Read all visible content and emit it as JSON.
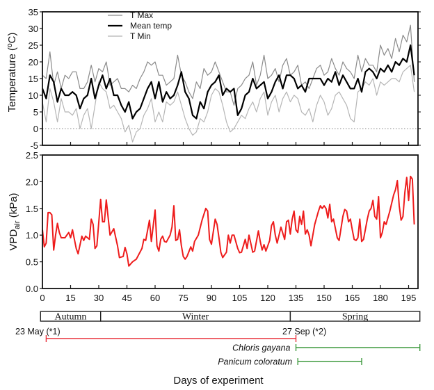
{
  "chart_data": [
    {
      "type": "line",
      "title": "",
      "xlabel": "",
      "ylabel": "Temperature (ºC)",
      "xlim": [
        0,
        200
      ],
      "ylim": [
        -5,
        35
      ],
      "yticks": [
        -5,
        0,
        5,
        10,
        15,
        20,
        25,
        30,
        35
      ],
      "reference_line": {
        "y": 0,
        "style": "dotted"
      },
      "legend": {
        "placement": "top-left",
        "entries": [
          "T Max",
          "Mean temp",
          "T Min"
        ]
      },
      "series": [
        {
          "name": "T Max",
          "color": "#8a8a8a",
          "x": [
            0,
            2,
            4,
            6,
            8,
            10,
            12,
            14,
            16,
            18,
            20,
            22,
            24,
            26,
            28,
            30,
            32,
            34,
            36,
            38,
            40,
            42,
            44,
            46,
            48,
            50,
            52,
            54,
            56,
            58,
            60,
            62,
            64,
            66,
            68,
            70,
            72,
            74,
            76,
            78,
            80,
            82,
            84,
            86,
            88,
            90,
            92,
            94,
            96,
            98,
            100,
            102,
            104,
            106,
            108,
            110,
            112,
            114,
            116,
            118,
            120,
            122,
            124,
            126,
            128,
            130,
            132,
            134,
            136,
            138,
            140,
            142,
            144,
            146,
            148,
            150,
            152,
            154,
            156,
            158,
            160,
            162,
            164,
            166,
            168,
            170,
            172,
            174,
            176,
            178,
            180,
            182,
            184,
            186,
            188,
            190,
            192,
            194,
            196,
            198
          ],
          "y": [
            16,
            15,
            23,
            13,
            17,
            12,
            16,
            15,
            17,
            17,
            12,
            12,
            14,
            19,
            14,
            18,
            17,
            20,
            13,
            14,
            15,
            12,
            12,
            11,
            13,
            12,
            15,
            17,
            20,
            19,
            20,
            16,
            16,
            13,
            14,
            15,
            22,
            16,
            14,
            11,
            9,
            14,
            12,
            18,
            16,
            17,
            20,
            17,
            14,
            11,
            11,
            7,
            12,
            13,
            15,
            16,
            20,
            13,
            16,
            22,
            15,
            16,
            18,
            14,
            19,
            21,
            16,
            17,
            19,
            13,
            14,
            12,
            15,
            18,
            19,
            16,
            17,
            21,
            18,
            16,
            20,
            18,
            17,
            15,
            22,
            17,
            21,
            19,
            19,
            17,
            25,
            22,
            24,
            21,
            27,
            23,
            28,
            26,
            31,
            14
          ]
        },
        {
          "name": "Mean temp",
          "color": "#000000",
          "x": [
            0,
            2,
            4,
            6,
            8,
            10,
            12,
            14,
            16,
            18,
            20,
            22,
            24,
            26,
            28,
            30,
            32,
            34,
            36,
            38,
            40,
            42,
            44,
            46,
            48,
            50,
            52,
            54,
            56,
            58,
            60,
            62,
            64,
            66,
            68,
            70,
            72,
            74,
            76,
            78,
            80,
            82,
            84,
            86,
            88,
            90,
            92,
            94,
            96,
            98,
            100,
            102,
            104,
            106,
            108,
            110,
            112,
            114,
            116,
            118,
            120,
            122,
            124,
            126,
            128,
            130,
            132,
            134,
            136,
            138,
            140,
            142,
            144,
            146,
            148,
            150,
            152,
            154,
            156,
            158,
            160,
            162,
            164,
            166,
            168,
            170,
            172,
            174,
            176,
            178,
            180,
            182,
            184,
            186,
            188,
            190,
            192,
            194,
            196,
            198
          ],
          "y": [
            12,
            9,
            16,
            14,
            8,
            12,
            10,
            10,
            11,
            10,
            6,
            9,
            10,
            15,
            9,
            13,
            16,
            12,
            15,
            10,
            10,
            7,
            5,
            8,
            3,
            5,
            6,
            9,
            12,
            14,
            9,
            14,
            8,
            11,
            9,
            10,
            13,
            17,
            11,
            9,
            4,
            3,
            8,
            6,
            11,
            13,
            14,
            16,
            10,
            12,
            11,
            12,
            4,
            6,
            10,
            11,
            15,
            12,
            13,
            14,
            9,
            11,
            14,
            16,
            12,
            16,
            16,
            15,
            12,
            13,
            11,
            15,
            15,
            15,
            15,
            13,
            15,
            14,
            17,
            13,
            16,
            14,
            12,
            12,
            15,
            11,
            17,
            18,
            17,
            15,
            18,
            17,
            19,
            17,
            20,
            19,
            21,
            20,
            25,
            16
          ]
        },
        {
          "name": "T Min",
          "color": "#b5b5b5",
          "x": [
            0,
            2,
            4,
            6,
            8,
            10,
            12,
            14,
            16,
            18,
            20,
            22,
            24,
            26,
            28,
            30,
            32,
            34,
            36,
            38,
            40,
            42,
            44,
            46,
            48,
            50,
            52,
            54,
            56,
            58,
            60,
            62,
            64,
            66,
            68,
            70,
            72,
            74,
            76,
            78,
            80,
            82,
            84,
            86,
            88,
            90,
            92,
            94,
            96,
            98,
            100,
            102,
            104,
            106,
            108,
            110,
            112,
            114,
            116,
            118,
            120,
            122,
            124,
            126,
            128,
            130,
            132,
            134,
            136,
            138,
            140,
            142,
            144,
            146,
            148,
            150,
            152,
            154,
            156,
            158,
            160,
            162,
            164,
            166,
            168,
            170,
            172,
            174,
            176,
            178,
            180,
            182,
            184,
            186,
            188,
            190,
            192,
            194,
            196,
            198
          ],
          "y": [
            8,
            2,
            12,
            8,
            2,
            9,
            5,
            5,
            4,
            6,
            0,
            4,
            6,
            0,
            7,
            14,
            12,
            11,
            6,
            7,
            5,
            3,
            -1,
            1,
            -4,
            -1,
            0,
            4,
            6,
            9,
            2,
            5,
            2,
            8,
            7,
            8,
            11,
            7,
            3,
            0,
            -2,
            -1,
            3,
            2,
            5,
            10,
            12,
            11,
            7,
            2,
            -1,
            0,
            2,
            4,
            3,
            6,
            8,
            5,
            9,
            11,
            4,
            8,
            10,
            5,
            9,
            11,
            8,
            10,
            9,
            5,
            4,
            6,
            2,
            7,
            10,
            8,
            4,
            6,
            10,
            11,
            9,
            7,
            3,
            2,
            11,
            12,
            14,
            13,
            15,
            10,
            14,
            13,
            14,
            15,
            15,
            14,
            17,
            18,
            19,
            11
          ]
        }
      ]
    },
    {
      "type": "line",
      "title": "",
      "xlabel": "Days of experiment",
      "ylabel": "VPDair (kPa)",
      "ylabel_main": "VPD",
      "ylabel_sub": "air",
      "ylabel_unit": " (kPa)",
      "xlim": [
        0,
        200
      ],
      "ylim": [
        0,
        2.5
      ],
      "xticks": [
        0,
        15,
        30,
        45,
        60,
        75,
        90,
        105,
        120,
        135,
        150,
        165,
        180,
        195
      ],
      "yticks": [
        0.0,
        0.5,
        1.0,
        1.5,
        2.0,
        2.5
      ],
      "ytick_labels": [
        "0.0",
        "0.5",
        "1.0",
        "1.5",
        "2.0",
        "2.5"
      ],
      "series": [
        {
          "name": "VPDair",
          "color": "#ee1c1c",
          "x": [
            0,
            1,
            2,
            3,
            4,
            5,
            6,
            7,
            8,
            9,
            10,
            12,
            14,
            15,
            16,
            18,
            19,
            21,
            22,
            23,
            25,
            26,
            27,
            28,
            29,
            31,
            32,
            33,
            34,
            36,
            38,
            40,
            41,
            43,
            44,
            45,
            46,
            48,
            50,
            53,
            54,
            55,
            57,
            58,
            60,
            61,
            62,
            63,
            64,
            65,
            66,
            68,
            69,
            70,
            71,
            72,
            73,
            74,
            75,
            76,
            77,
            79,
            80,
            81,
            83,
            85,
            87,
            88,
            89,
            90,
            92,
            93,
            94,
            95,
            96,
            98,
            99,
            100,
            101,
            102,
            104,
            105,
            106,
            108,
            109,
            110,
            112,
            113,
            115,
            116,
            117,
            118,
            119,
            121,
            122,
            123,
            124,
            125,
            127,
            129,
            130,
            131,
            132,
            133,
            134,
            135,
            136,
            137,
            138,
            139,
            140,
            141,
            142,
            143,
            145,
            147,
            148,
            149,
            150,
            151,
            152,
            153,
            154,
            155,
            157,
            158,
            160,
            161,
            162,
            163,
            164,
            165,
            166,
            167,
            168,
            169,
            170,
            171,
            173,
            174,
            175,
            176,
            177,
            178,
            179,
            180,
            181,
            182,
            183,
            185,
            187,
            188,
            189,
            190,
            191,
            192,
            193,
            194,
            195,
            196,
            197,
            198
          ],
          "y": [
            1.1,
            0.78,
            0.85,
            1.42,
            1.42,
            1.38,
            0.72,
            1.0,
            1.22,
            1.05,
            0.95,
            0.95,
            1.05,
            0.95,
            1.1,
            0.75,
            0.65,
            0.98,
            0.9,
            0.98,
            0.92,
            1.3,
            1.2,
            0.75,
            0.8,
            1.67,
            1.25,
            1.25,
            1.66,
            1.0,
            1.12,
            0.8,
            0.58,
            0.6,
            0.77,
            0.65,
            0.42,
            0.5,
            0.55,
            0.75,
            0.92,
            0.9,
            1.28,
            0.88,
            1.47,
            0.8,
            0.7,
            0.92,
            0.98,
            0.88,
            0.87,
            1.0,
            1.15,
            1.55,
            0.9,
            0.92,
            1.1,
            0.8,
            0.6,
            0.55,
            0.6,
            0.78,
            0.7,
            0.88,
            1.0,
            1.28,
            1.5,
            1.45,
            0.92,
            0.83,
            1.3,
            1.2,
            0.95,
            0.68,
            0.58,
            0.68,
            1.0,
            0.85,
            1.0,
            1.0,
            0.75,
            0.67,
            0.68,
            0.92,
            0.75,
            1.0,
            0.68,
            0.7,
            1.08,
            0.88,
            0.72,
            0.82,
            0.7,
            0.9,
            1.18,
            1.25,
            1.0,
            0.85,
            1.15,
            0.92,
            1.25,
            1.28,
            1.02,
            1.3,
            1.45,
            1.1,
            1.05,
            1.35,
            1.2,
            1.45,
            1.02,
            1.1,
            1.0,
            0.8,
            1.2,
            1.45,
            1.55,
            1.5,
            1.55,
            1.5,
            1.32,
            1.58,
            1.25,
            1.3,
            0.95,
            0.9,
            1.35,
            1.48,
            1.45,
            1.25,
            1.3,
            1.1,
            0.92,
            0.9,
            0.95,
            1.3,
            0.88,
            0.92,
            1.3,
            1.45,
            1.5,
            1.65,
            1.35,
            1.3,
            1.72,
            0.95,
            1.05,
            1.25,
            1.2,
            1.45,
            1.75,
            1.85,
            2.02,
            1.55,
            1.28,
            1.35,
            1.8,
            2.08,
            1.65,
            2.1,
            2.05,
            1.2
          ]
        }
      ]
    }
  ],
  "seasons": [
    {
      "label": "Autumn",
      "start": -1,
      "end": 31
    },
    {
      "label": "Winter",
      "start": 31,
      "end": 132
    },
    {
      "label": "Spring",
      "start": 132,
      "end": 201
    }
  ],
  "annotations": {
    "start_label": "23 May (*1)",
    "end_label": "27 Sep (*2)",
    "periods": [
      {
        "name": "experiment-period",
        "label": "",
        "start": 2,
        "end": 135,
        "color": "#e8303a"
      },
      {
        "name": "chloris-gayana-period",
        "label": "Chloris gayana",
        "start": 135,
        "end": 201,
        "color": "#3f9a3f"
      },
      {
        "name": "panicum-coloratum-period",
        "label": "Panicum coloratum",
        "start": 136,
        "end": 170,
        "color": "#3f9a3f"
      }
    ]
  },
  "xaxis_title": "Days of experiment"
}
